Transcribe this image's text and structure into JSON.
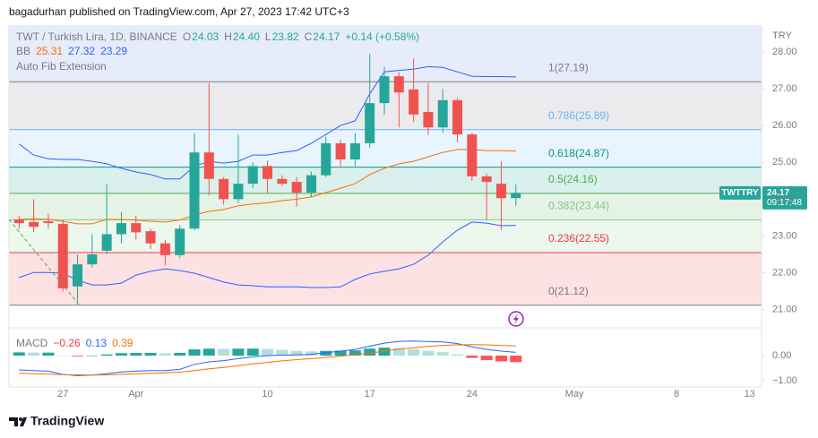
{
  "header": "bagadurhan published on TradingView.com, Apr 27, 2023 17:42 UTC+3",
  "footer": "TradingView",
  "chart_data": [
    {
      "type": "candlestick",
      "title": "TWT / Turkish Lira, 1D, BINANCE",
      "currency": "TRY",
      "legend": [
        {
          "key": "O",
          "value": "24.03"
        },
        {
          "key": "H",
          "value": "24.40"
        },
        {
          "key": "L",
          "value": "23.82"
        },
        {
          "key": "C",
          "value": "24.17"
        }
      ],
      "change": "+0.14 (+0.58%)",
      "symbol_tag": "TWTTRY",
      "last_price": "24.17",
      "countdown": "09:17:48",
      "up_color": "#26a69a",
      "down_color": "#ef5350",
      "x": [
        "2023-03-24",
        "2023-03-25",
        "2023-03-26",
        "2023-03-27",
        "2023-03-28",
        "2023-03-29",
        "2023-03-30",
        "2023-03-31",
        "2023-04-01",
        "2023-04-02",
        "2023-04-03",
        "2023-04-04",
        "2023-04-05",
        "2023-04-06",
        "2023-04-07",
        "2023-04-08",
        "2023-04-09",
        "2023-04-10",
        "2023-04-11",
        "2023-04-12",
        "2023-04-13",
        "2023-04-14",
        "2023-04-15",
        "2023-04-16",
        "2023-04-17",
        "2023-04-18",
        "2023-04-19",
        "2023-04-20",
        "2023-04-21",
        "2023-04-22",
        "2023-04-23",
        "2023-04-24",
        "2023-04-25",
        "2023-04-26",
        "2023-04-27"
      ],
      "open": [
        23.45,
        23.38,
        23.4,
        23.33,
        21.63,
        22.23,
        22.6,
        23.05,
        23.35,
        23.13,
        22.8,
        22.48,
        23.2,
        25.27,
        24.55,
        24.0,
        24.42,
        24.9,
        24.55,
        24.47,
        24.18,
        24.65,
        25.52,
        25.08,
        25.52,
        26.61,
        27.34,
        26.98,
        26.37,
        25.95,
        26.69,
        25.76,
        24.62,
        24.42,
        24.03
      ],
      "high": [
        23.55,
        24.0,
        23.6,
        23.45,
        22.5,
        23.05,
        24.42,
        23.65,
        23.55,
        23.2,
        22.9,
        23.3,
        25.8,
        27.15,
        24.6,
        25.75,
        25.0,
        25.05,
        24.65,
        24.6,
        24.75,
        25.7,
        25.62,
        25.8,
        27.95,
        27.6,
        27.45,
        27.83,
        27.15,
        27.0,
        26.75,
        25.8,
        24.7,
        25.03,
        24.4
      ],
      "low": [
        23.2,
        23.1,
        23.2,
        21.5,
        21.18,
        22.15,
        22.5,
        22.8,
        22.9,
        22.65,
        22.2,
        22.4,
        23.15,
        24.1,
        23.85,
        23.9,
        24.3,
        24.15,
        24.35,
        23.8,
        24.05,
        24.6,
        24.9,
        24.9,
        25.4,
        26.3,
        25.95,
        26.1,
        25.75,
        25.8,
        25.55,
        24.5,
        23.45,
        23.16,
        23.82
      ],
      "close": [
        23.35,
        23.25,
        23.35,
        21.58,
        22.23,
        22.5,
        23.05,
        23.35,
        23.1,
        22.8,
        22.48,
        23.2,
        25.27,
        24.55,
        24.0,
        24.42,
        24.9,
        24.55,
        24.42,
        24.18,
        24.65,
        25.52,
        25.08,
        25.52,
        26.61,
        27.34,
        26.9,
        26.3,
        25.95,
        26.69,
        25.76,
        24.62,
        24.47,
        24.03,
        24.17
      ],
      "bb": {
        "label": "BB",
        "legend": [
          "25.31",
          "27.32",
          "23.29"
        ],
        "basis_color": "#ff6d00",
        "band_color": "#2962ff",
        "basis": [
          23.45,
          23.47,
          23.45,
          23.4,
          23.33,
          23.33,
          23.45,
          23.45,
          23.43,
          23.4,
          23.38,
          23.43,
          23.57,
          23.67,
          23.72,
          23.82,
          23.87,
          23.9,
          23.96,
          24.0,
          24.06,
          24.18,
          24.3,
          24.42,
          24.67,
          24.84,
          24.96,
          25.03,
          25.15,
          25.27,
          25.35,
          25.35,
          25.32,
          25.32,
          25.31
        ],
        "upper": [
          25.5,
          25.2,
          25.1,
          25.08,
          25.08,
          25.03,
          24.96,
          24.84,
          24.74,
          24.67,
          24.55,
          24.55,
          24.9,
          25.03,
          24.98,
          25.03,
          25.2,
          25.2,
          25.27,
          25.32,
          25.52,
          25.76,
          26.0,
          26.13,
          26.86,
          27.46,
          27.5,
          27.53,
          27.6,
          27.58,
          27.46,
          27.34,
          27.33,
          27.33,
          27.32
        ],
        "lower": [
          21.87,
          22.01,
          22.01,
          21.99,
          21.8,
          21.67,
          21.67,
          21.72,
          21.94,
          22.04,
          22.11,
          22.06,
          21.99,
          21.87,
          21.75,
          21.67,
          21.65,
          21.62,
          21.62,
          21.62,
          21.6,
          21.6,
          21.62,
          21.82,
          21.97,
          22.04,
          22.11,
          22.23,
          22.48,
          22.84,
          23.16,
          23.38,
          23.35,
          23.28,
          23.29
        ]
      },
      "fib": {
        "label": "Auto Fib Extension",
        "levels": [
          {
            "label": "1(27.19)",
            "value": 27.19,
            "color": "#787b86"
          },
          {
            "label": "0.786(25.89)",
            "value": 25.89,
            "color": "#64b5f6"
          },
          {
            "label": "0.618(24.87)",
            "value": 24.87,
            "color": "#089981"
          },
          {
            "label": "0.5(24.16)",
            "value": 24.16,
            "color": "#4caf50"
          },
          {
            "label": "0.382(23.44)",
            "value": 23.44,
            "color": "#81c784"
          },
          {
            "label": "0.236(22.55)",
            "value": 22.55,
            "color": "#f23645"
          },
          {
            "label": "0(21.12)",
            "value": 21.12,
            "color": "#787b86"
          }
        ]
      },
      "xlim": [
        "2023-03-23",
        "2023-05-14"
      ],
      "xticks": [
        {
          "value": "2023-03-27",
          "label": "27"
        },
        {
          "value": "2023-04-01",
          "label": "Apr"
        },
        {
          "value": "2023-04-10",
          "label": "10"
        },
        {
          "value": "2023-04-17",
          "label": "17"
        },
        {
          "value": "2023-04-24",
          "label": "24"
        },
        {
          "value": "2023-05-01",
          "label": "May"
        },
        {
          "value": "2023-05-08",
          "label": "8"
        },
        {
          "value": "2023-05-13",
          "label": "13"
        }
      ],
      "ylim": [
        20.53,
        28.73
      ],
      "yticks": [
        {
          "value": 28,
          "label": "28.00"
        },
        {
          "value": 27,
          "label": "27.00"
        },
        {
          "value": 26,
          "label": "26.00"
        },
        {
          "value": 25,
          "label": "25.00"
        },
        {
          "value": 24,
          "label": "24.00"
        },
        {
          "value": 23,
          "label": "23.00"
        },
        {
          "value": 22,
          "label": "22.00"
        },
        {
          "value": 21,
          "label": "21.00"
        }
      ]
    },
    {
      "type": "macd",
      "title": "MACD",
      "legend": [
        "−0.26",
        "0.13",
        "0.39"
      ],
      "macd_color": "#2962ff",
      "signal_color": "#ff6d00",
      "hist_colors": {
        "up_grow": "#26a69a",
        "up_fall": "#b2dfdb",
        "down_grow": "#ff5252",
        "down_fall": "#ffcdd2"
      },
      "histogram": [
        0.13,
        0.12,
        0.12,
        0.01,
        -0.03,
        0,
        0.05,
        0.1,
        0.11,
        0.11,
        0.09,
        0.11,
        0.25,
        0.28,
        0.27,
        0.28,
        0.28,
        0.27,
        0.23,
        0.19,
        0.17,
        0.19,
        0.2,
        0.21,
        0.28,
        0.32,
        0.31,
        0.26,
        0.19,
        0.14,
        0.05,
        -0.09,
        -0.18,
        -0.23,
        -0.26
      ],
      "macd": [
        -0.57,
        -0.6,
        -0.62,
        -0.75,
        -0.8,
        -0.78,
        -0.72,
        -0.65,
        -0.62,
        -0.6,
        -0.6,
        -0.55,
        -0.35,
        -0.25,
        -0.2,
        -0.12,
        -0.05,
        0,
        0.02,
        0.03,
        0.05,
        0.12,
        0.18,
        0.25,
        0.38,
        0.5,
        0.57,
        0.58,
        0.56,
        0.55,
        0.48,
        0.35,
        0.25,
        0.18,
        0.13
      ],
      "signal": [
        -0.7,
        -0.72,
        -0.74,
        -0.76,
        -0.77,
        -0.78,
        -0.77,
        -0.75,
        -0.73,
        -0.71,
        -0.69,
        -0.66,
        -0.6,
        -0.53,
        -0.47,
        -0.4,
        -0.33,
        -0.27,
        -0.21,
        -0.16,
        -0.12,
        -0.07,
        -0.02,
        0.04,
        0.1,
        0.18,
        0.26,
        0.32,
        0.37,
        0.41,
        0.43,
        0.44,
        0.43,
        0.41,
        0.39
      ],
      "ylim": [
        -1.18,
        1.04
      ],
      "yticks": [
        {
          "value": 0,
          "label": "0.00"
        },
        {
          "value": -1,
          "label": "−1.00"
        }
      ]
    }
  ]
}
